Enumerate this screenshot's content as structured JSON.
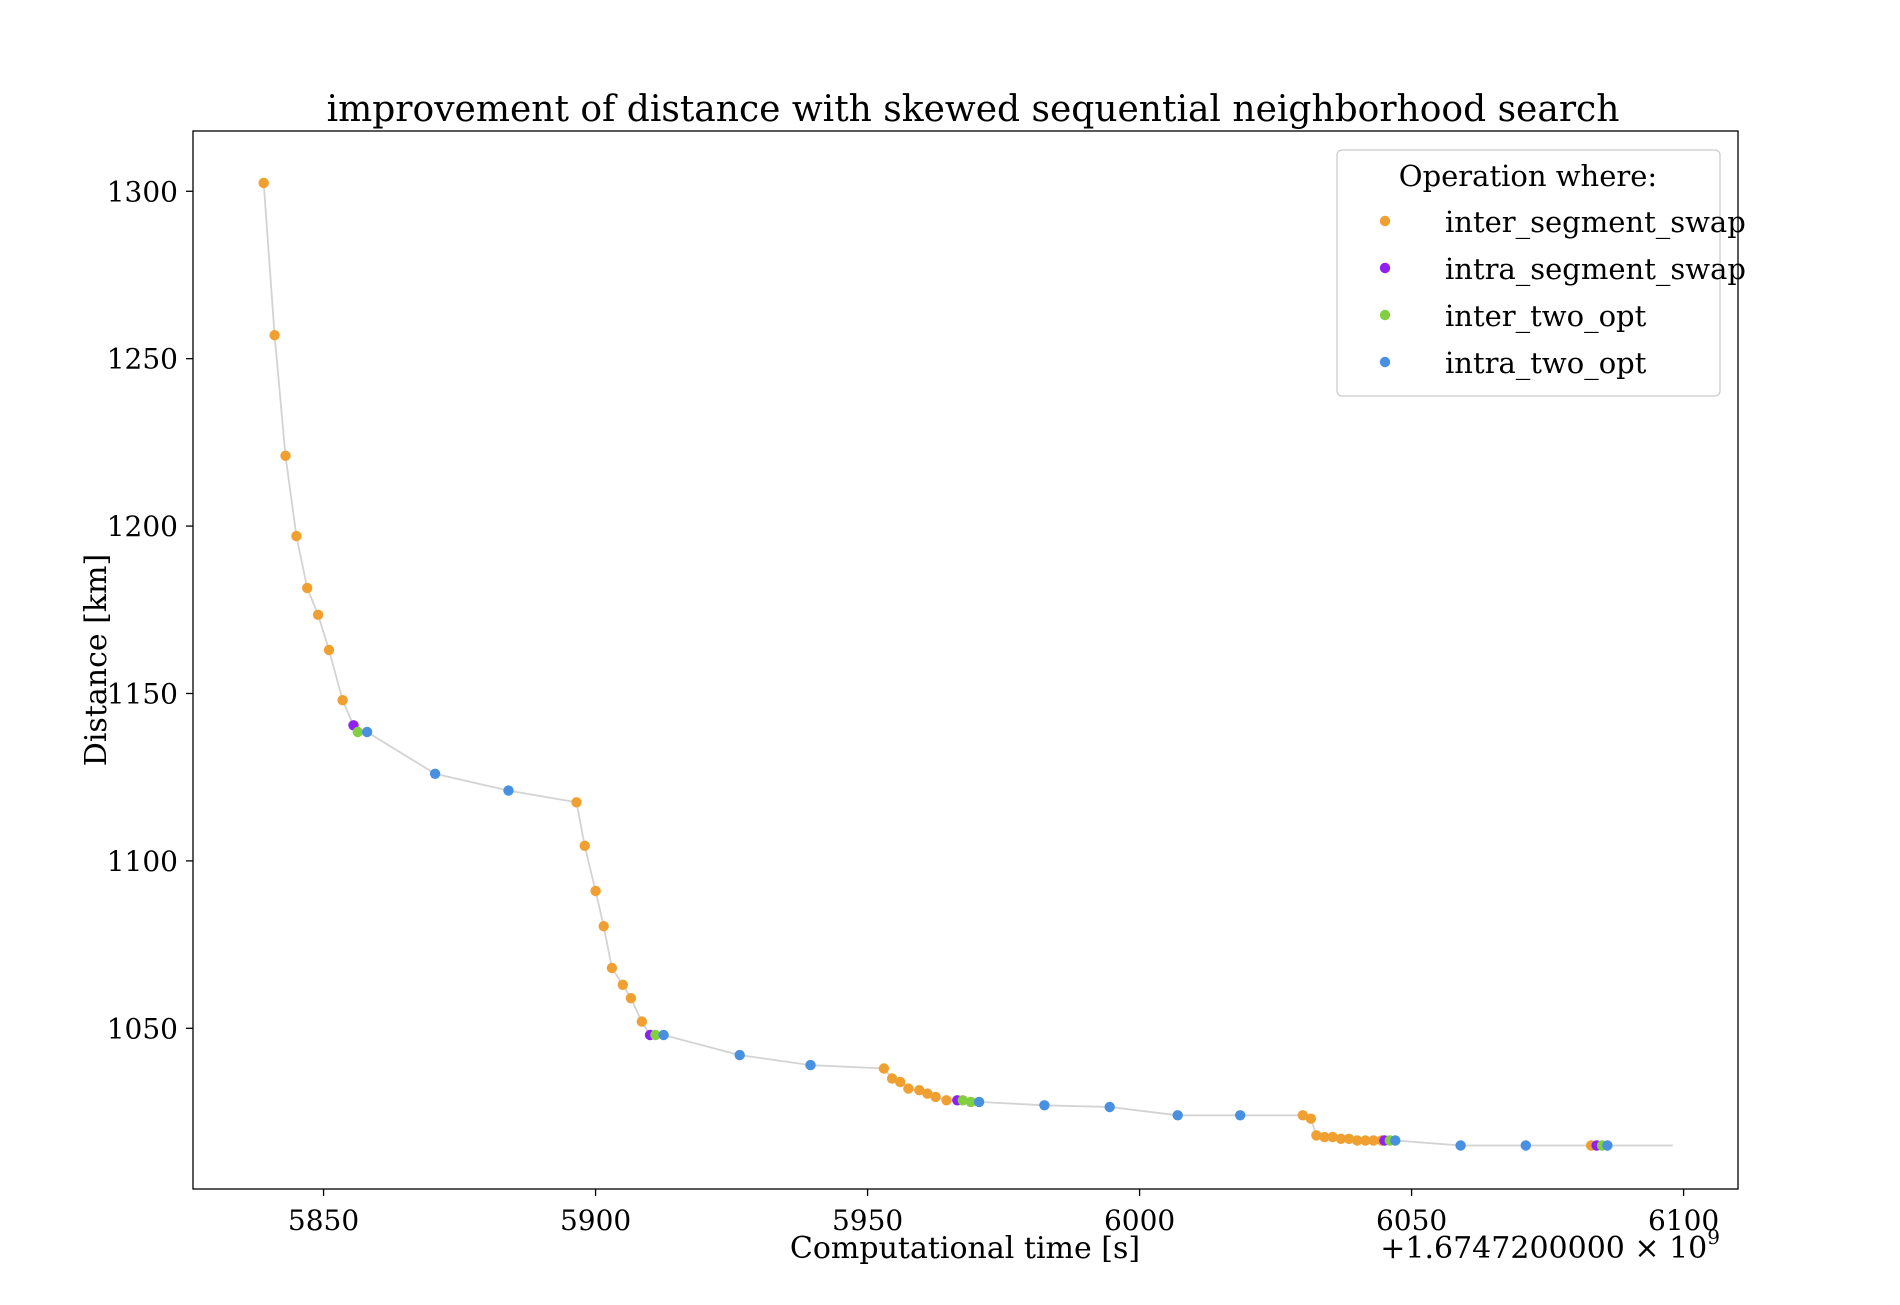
{
  "chart_data": {
    "type": "scatter",
    "title": "improvement of distance with skewed sequential neighborhood search",
    "xlabel": "Computational time [s]",
    "ylabel": "Distance [km]",
    "x_offset_label": "+1.6747200000 × 10",
    "x_offset_exponent": "9",
    "xlim": [
      5826,
      6110
    ],
    "ylim": [
      1002,
      1318
    ],
    "x_ticks": [
      5850,
      5900,
      5950,
      6000,
      6050,
      6100
    ],
    "y_ticks": [
      1050,
      1100,
      1150,
      1200,
      1250,
      1300
    ],
    "grid": false,
    "legend": {
      "title": "Operation where:",
      "placement": "top-right",
      "entries": [
        {
          "name": "inter_segment_swap",
          "color": "#f0a030"
        },
        {
          "name": "intra_segment_swap",
          "color": "#9020f0"
        },
        {
          "name": "inter_two_opt",
          "color": "#80d040"
        },
        {
          "name": "intra_two_opt",
          "color": "#4a90e0"
        }
      ]
    },
    "line_color": "#d3d3d3",
    "line_end": [
      6098,
      1015
    ],
    "points": [
      {
        "x": 5839.0,
        "y": 1302.5,
        "op": "inter_segment_swap"
      },
      {
        "x": 5841.0,
        "y": 1257.0,
        "op": "inter_segment_swap"
      },
      {
        "x": 5843.0,
        "y": 1221.0,
        "op": "inter_segment_swap"
      },
      {
        "x": 5845.0,
        "y": 1197.0,
        "op": "inter_segment_swap"
      },
      {
        "x": 5847.0,
        "y": 1181.5,
        "op": "inter_segment_swap"
      },
      {
        "x": 5849.0,
        "y": 1173.5,
        "op": "inter_segment_swap"
      },
      {
        "x": 5851.0,
        "y": 1163.0,
        "op": "inter_segment_swap"
      },
      {
        "x": 5853.5,
        "y": 1148.0,
        "op": "inter_segment_swap"
      },
      {
        "x": 5855.5,
        "y": 1140.5,
        "op": "intra_segment_swap"
      },
      {
        "x": 5856.3,
        "y": 1138.5,
        "op": "inter_two_opt"
      },
      {
        "x": 5858.0,
        "y": 1138.5,
        "op": "intra_two_opt"
      },
      {
        "x": 5870.5,
        "y": 1126.0,
        "op": "intra_two_opt"
      },
      {
        "x": 5884.0,
        "y": 1121.0,
        "op": "intra_two_opt"
      },
      {
        "x": 5896.5,
        "y": 1117.5,
        "op": "inter_segment_swap"
      },
      {
        "x": 5898.0,
        "y": 1104.5,
        "op": "inter_segment_swap"
      },
      {
        "x": 5900.0,
        "y": 1091.0,
        "op": "inter_segment_swap"
      },
      {
        "x": 5901.5,
        "y": 1080.5,
        "op": "inter_segment_swap"
      },
      {
        "x": 5903.0,
        "y": 1068.0,
        "op": "inter_segment_swap"
      },
      {
        "x": 5905.0,
        "y": 1063.0,
        "op": "inter_segment_swap"
      },
      {
        "x": 5906.5,
        "y": 1059.0,
        "op": "inter_segment_swap"
      },
      {
        "x": 5908.5,
        "y": 1052.0,
        "op": "inter_segment_swap"
      },
      {
        "x": 5910.0,
        "y": 1048.0,
        "op": "intra_segment_swap"
      },
      {
        "x": 5911.0,
        "y": 1048.0,
        "op": "inter_two_opt"
      },
      {
        "x": 5912.5,
        "y": 1048.0,
        "op": "intra_two_opt"
      },
      {
        "x": 5926.5,
        "y": 1042.0,
        "op": "intra_two_opt"
      },
      {
        "x": 5939.5,
        "y": 1039.0,
        "op": "intra_two_opt"
      },
      {
        "x": 5953.0,
        "y": 1038.0,
        "op": "inter_segment_swap"
      },
      {
        "x": 5954.5,
        "y": 1035.0,
        "op": "inter_segment_swap"
      },
      {
        "x": 5956.0,
        "y": 1034.0,
        "op": "inter_segment_swap"
      },
      {
        "x": 5957.5,
        "y": 1032.0,
        "op": "inter_segment_swap"
      },
      {
        "x": 5959.5,
        "y": 1031.5,
        "op": "inter_segment_swap"
      },
      {
        "x": 5961.0,
        "y": 1030.5,
        "op": "inter_segment_swap"
      },
      {
        "x": 5962.5,
        "y": 1029.5,
        "op": "inter_segment_swap"
      },
      {
        "x": 5964.5,
        "y": 1028.5,
        "op": "inter_segment_swap"
      },
      {
        "x": 5966.5,
        "y": 1028.5,
        "op": "intra_segment_swap"
      },
      {
        "x": 5967.5,
        "y": 1028.5,
        "op": "inter_two_opt"
      },
      {
        "x": 5969.0,
        "y": 1028.0,
        "op": "inter_two_opt"
      },
      {
        "x": 5970.5,
        "y": 1028.0,
        "op": "intra_two_opt"
      },
      {
        "x": 5982.5,
        "y": 1027.0,
        "op": "intra_two_opt"
      },
      {
        "x": 5994.5,
        "y": 1026.5,
        "op": "intra_two_opt"
      },
      {
        "x": 6007.0,
        "y": 1024.0,
        "op": "intra_two_opt"
      },
      {
        "x": 6018.5,
        "y": 1024.0,
        "op": "intra_two_opt"
      },
      {
        "x": 6030.0,
        "y": 1024.0,
        "op": "inter_segment_swap"
      },
      {
        "x": 6031.5,
        "y": 1023.0,
        "op": "inter_segment_swap"
      },
      {
        "x": 6032.5,
        "y": 1018.0,
        "op": "inter_segment_swap"
      },
      {
        "x": 6034.0,
        "y": 1017.5,
        "op": "inter_segment_swap"
      },
      {
        "x": 6035.5,
        "y": 1017.5,
        "op": "inter_segment_swap"
      },
      {
        "x": 6037.0,
        "y": 1017.0,
        "op": "inter_segment_swap"
      },
      {
        "x": 6038.5,
        "y": 1017.0,
        "op": "inter_segment_swap"
      },
      {
        "x": 6040.0,
        "y": 1016.5,
        "op": "inter_segment_swap"
      },
      {
        "x": 6041.5,
        "y": 1016.5,
        "op": "inter_segment_swap"
      },
      {
        "x": 6043.0,
        "y": 1016.5,
        "op": "inter_segment_swap"
      },
      {
        "x": 6044.5,
        "y": 1016.5,
        "op": "inter_segment_swap"
      },
      {
        "x": 6045.0,
        "y": 1016.5,
        "op": "intra_segment_swap"
      },
      {
        "x": 6046.0,
        "y": 1016.5,
        "op": "inter_two_opt"
      },
      {
        "x": 6047.0,
        "y": 1016.5,
        "op": "intra_two_opt"
      },
      {
        "x": 6059.0,
        "y": 1015.0,
        "op": "intra_two_opt"
      },
      {
        "x": 6071.0,
        "y": 1015.0,
        "op": "intra_two_opt"
      },
      {
        "x": 6083.0,
        "y": 1015.0,
        "op": "inter_segment_swap"
      },
      {
        "x": 6084.0,
        "y": 1015.0,
        "op": "intra_segment_swap"
      },
      {
        "x": 6085.0,
        "y": 1015.0,
        "op": "inter_two_opt"
      },
      {
        "x": 6086.0,
        "y": 1015.0,
        "op": "intra_two_opt"
      }
    ]
  }
}
